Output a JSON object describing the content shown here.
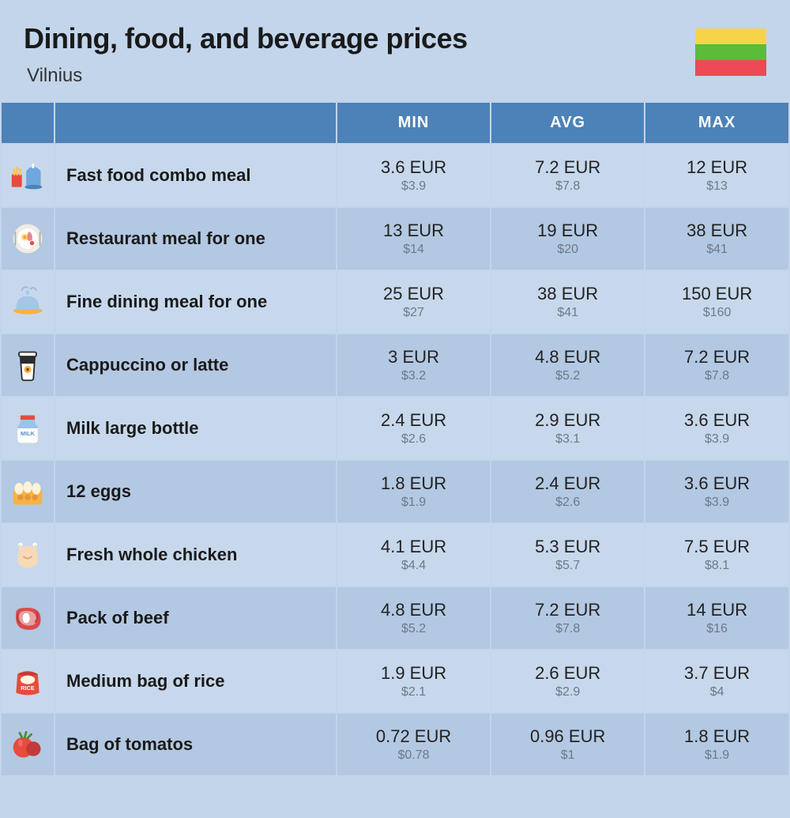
{
  "header": {
    "title": "Dining, food, and beverage prices",
    "subtitle": "Vilnius"
  },
  "flag": {
    "stripes": [
      "#f5d547",
      "#5dbb3a",
      "#ef4957"
    ]
  },
  "tableHeaders": {
    "min": "MIN",
    "avg": "AVG",
    "max": "MAX"
  },
  "colors": {
    "pageBg": "#c2d5eb",
    "headerBg": "#4d82b8",
    "rowEven": "#c7d8ec",
    "rowOdd": "#b3c8e2",
    "eurText": "#222222",
    "usdText": "#6b7a8a"
  },
  "rows": [
    {
      "icon": "fast-food-icon",
      "label": "Fast food combo meal",
      "min_eur": "3.6 EUR",
      "min_usd": "$3.9",
      "avg_eur": "7.2 EUR",
      "avg_usd": "$7.8",
      "max_eur": "12 EUR",
      "max_usd": "$13"
    },
    {
      "icon": "restaurant-meal-icon",
      "label": "Restaurant meal for one",
      "min_eur": "13 EUR",
      "min_usd": "$14",
      "avg_eur": "19 EUR",
      "avg_usd": "$20",
      "max_eur": "38 EUR",
      "max_usd": "$41"
    },
    {
      "icon": "fine-dining-icon",
      "label": "Fine dining meal for one",
      "min_eur": "25 EUR",
      "min_usd": "$27",
      "avg_eur": "38 EUR",
      "avg_usd": "$41",
      "max_eur": "150 EUR",
      "max_usd": "$160"
    },
    {
      "icon": "coffee-cup-icon",
      "label": "Cappuccino or latte",
      "min_eur": "3 EUR",
      "min_usd": "$3.2",
      "avg_eur": "4.8 EUR",
      "avg_usd": "$5.2",
      "max_eur": "7.2 EUR",
      "max_usd": "$7.8"
    },
    {
      "icon": "milk-bottle-icon",
      "label": "Milk large bottle",
      "min_eur": "2.4 EUR",
      "min_usd": "$2.6",
      "avg_eur": "2.9 EUR",
      "avg_usd": "$3.1",
      "max_eur": "3.6 EUR",
      "max_usd": "$3.9"
    },
    {
      "icon": "eggs-icon",
      "label": "12 eggs",
      "min_eur": "1.8 EUR",
      "min_usd": "$1.9",
      "avg_eur": "2.4 EUR",
      "avg_usd": "$2.6",
      "max_eur": "3.6 EUR",
      "max_usd": "$3.9"
    },
    {
      "icon": "chicken-icon",
      "label": "Fresh whole chicken",
      "min_eur": "4.1 EUR",
      "min_usd": "$4.4",
      "avg_eur": "5.3 EUR",
      "avg_usd": "$5.7",
      "max_eur": "7.5 EUR",
      "max_usd": "$8.1"
    },
    {
      "icon": "beef-icon",
      "label": "Pack of beef",
      "min_eur": "4.8 EUR",
      "min_usd": "$5.2",
      "avg_eur": "7.2 EUR",
      "avg_usd": "$7.8",
      "max_eur": "14 EUR",
      "max_usd": "$16"
    },
    {
      "icon": "rice-bag-icon",
      "label": "Medium bag of rice",
      "min_eur": "1.9 EUR",
      "min_usd": "$2.1",
      "avg_eur": "2.6 EUR",
      "avg_usd": "$2.9",
      "max_eur": "3.7 EUR",
      "max_usd": "$4"
    },
    {
      "icon": "tomatoes-icon",
      "label": "Bag of tomatos",
      "min_eur": "0.72 EUR",
      "min_usd": "$0.78",
      "avg_eur": "0.96 EUR",
      "avg_usd": "$1",
      "max_eur": "1.8 EUR",
      "max_usd": "$1.9"
    }
  ]
}
